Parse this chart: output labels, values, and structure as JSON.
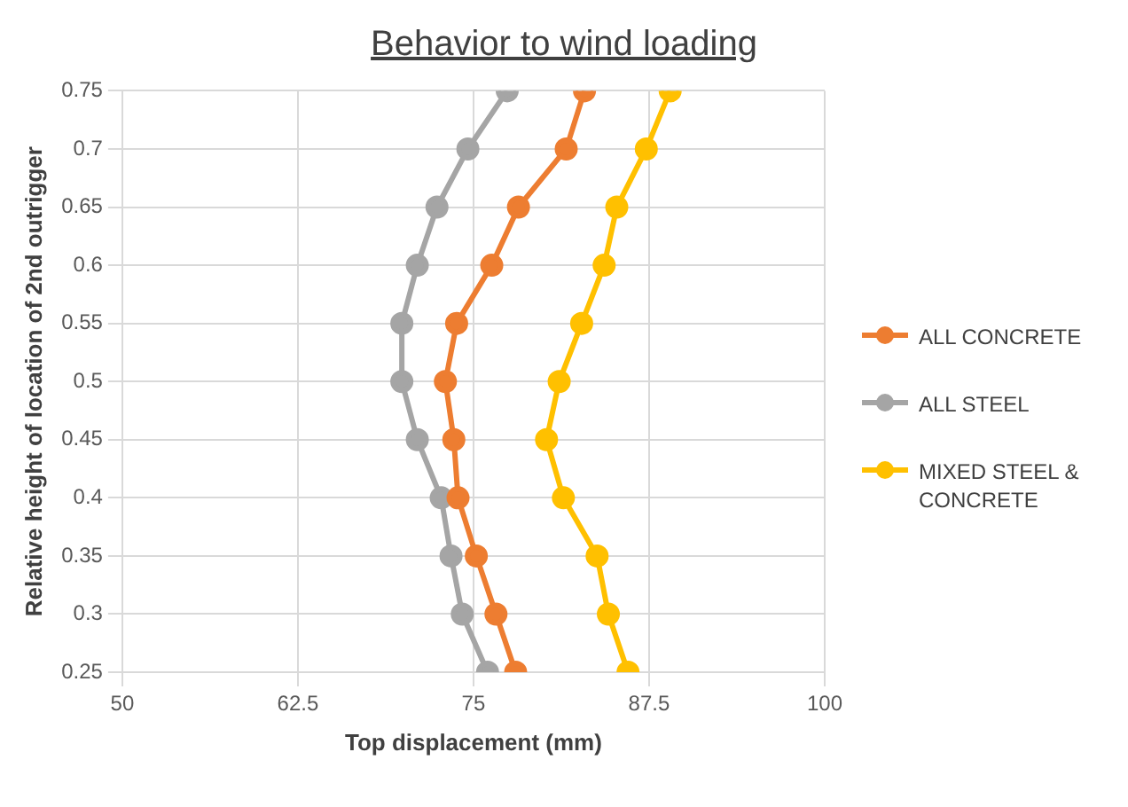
{
  "chart_data": {
    "type": "line",
    "title": "Behavior to wind loading",
    "xlabel": "Top displacement (mm)",
    "ylabel": "Relative height of location of 2nd outrigger",
    "xlim": [
      50,
      100
    ],
    "xticks": [
      50,
      62.5,
      75,
      87.5,
      100
    ],
    "ylim": [
      0.25,
      0.75
    ],
    "yticks": [
      0.25,
      0.3,
      0.35,
      0.4,
      0.45,
      0.5,
      0.55,
      0.6,
      0.65,
      0.7,
      0.75
    ],
    "grid": true,
    "legend": "right",
    "marker": "circle",
    "line_style": "solid",
    "series": [
      {
        "name": "ALL CONCRETE",
        "color": "#ed7d31",
        "x": [
          78.0,
          76.6,
          75.2,
          73.9,
          73.6,
          73.0,
          73.8,
          76.3,
          78.2,
          81.6,
          82.9
        ],
        "values": [
          0.25,
          0.3,
          0.35,
          0.4,
          0.45,
          0.5,
          0.55,
          0.6,
          0.65,
          0.7,
          0.75
        ]
      },
      {
        "name": "ALL STEEL",
        "color": "#a5a5a5",
        "x": [
          76.0,
          74.2,
          73.4,
          72.7,
          71.0,
          69.9,
          69.9,
          71.0,
          72.4,
          74.6,
          77.4
        ],
        "values": [
          0.25,
          0.3,
          0.35,
          0.4,
          0.45,
          0.5,
          0.55,
          0.6,
          0.65,
          0.7,
          0.75
        ]
      },
      {
        "name": "MIXED STEEL & CONCRETE",
        "color": "#ffc000",
        "x": [
          86.0,
          84.6,
          83.8,
          81.4,
          80.2,
          81.1,
          82.7,
          84.3,
          85.2,
          87.3,
          89.0
        ],
        "values": [
          0.25,
          0.3,
          0.35,
          0.4,
          0.45,
          0.5,
          0.55,
          0.6,
          0.65,
          0.7,
          0.75
        ]
      }
    ]
  }
}
